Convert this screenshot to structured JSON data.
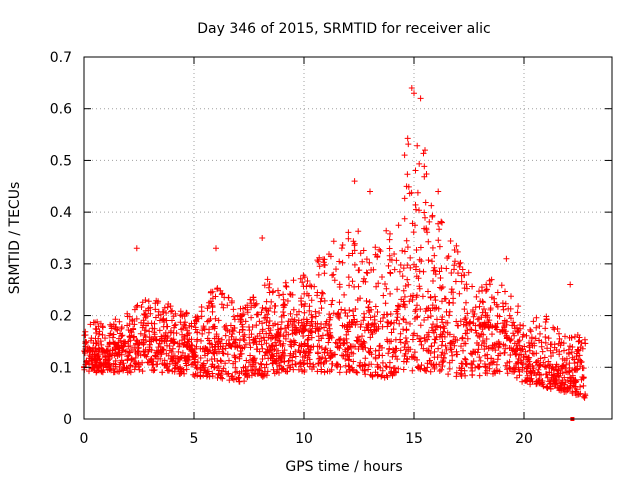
{
  "chart_data": {
    "type": "scatter",
    "title": "Day 346 of 2015, SRMTID for receiver alic",
    "xlabel": "GPS time / hours",
    "ylabel": "SRMTID / TECUs",
    "xlim": [
      0,
      24
    ],
    "ylim": [
      0,
      0.7
    ],
    "xticks": [
      0,
      5,
      10,
      15,
      20
    ],
    "yticks": [
      0,
      0.1,
      0.2,
      0.3,
      0.4,
      0.5,
      0.6,
      0.7
    ],
    "xtick_labels": [
      "0",
      "5",
      "10",
      "15",
      "20"
    ],
    "ytick_labels": [
      "0",
      "0.1",
      "0.2",
      "0.3",
      "0.4",
      "0.5",
      "0.6",
      "0.7"
    ],
    "grid": true,
    "legend": "none",
    "marker": "+",
    "color": "#ff0000",
    "x_sample_range": [
      0,
      22.8
    ],
    "envelope": {
      "hours": [
        0,
        1,
        2,
        3,
        4,
        5,
        6,
        7,
        8,
        9,
        10,
        11,
        12,
        13,
        14,
        15,
        16,
        17,
        18,
        19,
        20,
        21,
        22,
        22.8
      ],
      "low": [
        0.09,
        0.09,
        0.09,
        0.09,
        0.09,
        0.08,
        0.08,
        0.07,
        0.08,
        0.09,
        0.09,
        0.09,
        0.09,
        0.08,
        0.08,
        0.09,
        0.09,
        0.08,
        0.08,
        0.09,
        0.07,
        0.06,
        0.05,
        0.04
      ],
      "median": [
        0.13,
        0.13,
        0.14,
        0.15,
        0.15,
        0.13,
        0.14,
        0.14,
        0.15,
        0.16,
        0.17,
        0.17,
        0.18,
        0.17,
        0.18,
        0.24,
        0.19,
        0.18,
        0.18,
        0.17,
        0.12,
        0.1,
        0.09,
        0.1
      ],
      "high": [
        0.2,
        0.18,
        0.21,
        0.24,
        0.22,
        0.2,
        0.26,
        0.22,
        0.27,
        0.27,
        0.28,
        0.34,
        0.4,
        0.33,
        0.38,
        0.62,
        0.4,
        0.33,
        0.27,
        0.27,
        0.2,
        0.2,
        0.16,
        0.17
      ]
    },
    "peak_points": [
      {
        "x": 2.4,
        "y": 0.33
      },
      {
        "x": 6.0,
        "y": 0.33
      },
      {
        "x": 8.1,
        "y": 0.35
      },
      {
        "x": 12.3,
        "y": 0.46
      },
      {
        "x": 13.0,
        "y": 0.44
      },
      {
        "x": 14.9,
        "y": 0.64
      },
      {
        "x": 15.0,
        "y": 0.63
      },
      {
        "x": 15.3,
        "y": 0.62
      },
      {
        "x": 15.5,
        "y": 0.52
      },
      {
        "x": 16.1,
        "y": 0.44
      },
      {
        "x": 19.2,
        "y": 0.31
      },
      {
        "x": 22.1,
        "y": 0.26
      }
    ],
    "outliers": [
      {
        "x": 22.2,
        "y": 0.0
      }
    ],
    "random_seed": 346,
    "n_points": 2600
  }
}
